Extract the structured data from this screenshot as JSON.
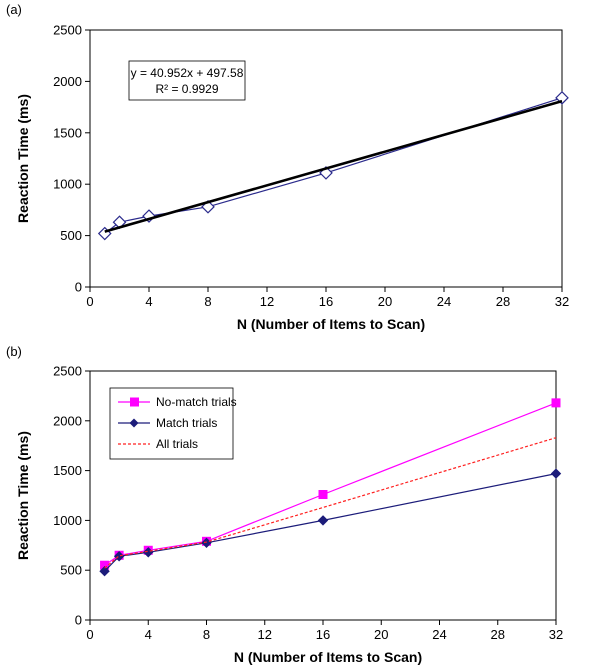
{
  "chart_data": [
    {
      "panel_label": "(a)",
      "type": "scatter",
      "xlabel": "N (Number of Items to Scan)",
      "ylabel": "Reaction Time (ms)",
      "xlim": [
        0,
        32
      ],
      "ylim": [
        0,
        2500
      ],
      "xticks": [
        0,
        4,
        8,
        12,
        16,
        20,
        24,
        28,
        32
      ],
      "yticks": [
        0,
        500,
        1000,
        1500,
        2000,
        2500
      ],
      "grid": false,
      "series": [
        {
          "marker": "diamond-open",
          "color": "#2b2b8c",
          "x": [
            1,
            2,
            4,
            8,
            16,
            32
          ],
          "y": [
            520,
            630,
            690,
            780,
            1110,
            1840
          ]
        }
      ],
      "trendline": {
        "slope": 40.952,
        "intercept": 497.58,
        "x_range": [
          1,
          32
        ],
        "color": "#000000"
      },
      "annotation": {
        "equation": "y = 40.952x + 497.58",
        "r_squared": "R² = 0.9929"
      }
    },
    {
      "panel_label": "(b)",
      "type": "line",
      "xlabel": "N (Number of Items to Scan)",
      "ylabel": "Reaction Time (ms)",
      "xlim": [
        0,
        32
      ],
      "ylim": [
        0,
        2500
      ],
      "xticks": [
        0,
        4,
        8,
        12,
        16,
        20,
        24,
        28,
        32
      ],
      "yticks": [
        0,
        500,
        1000,
        1500,
        2000,
        2500
      ],
      "grid": false,
      "legend_position": "top-left",
      "series": [
        {
          "name": "No-match trials",
          "color": "#ff00ff",
          "marker": "square",
          "dash": false,
          "x": [
            1,
            2,
            4,
            8,
            16,
            32
          ],
          "y": [
            550,
            650,
            700,
            790,
            1260,
            2180
          ]
        },
        {
          "name": "Match trials",
          "color": "#1c1c7a",
          "marker": "diamond",
          "dash": false,
          "x": [
            1,
            2,
            4,
            8,
            16,
            32
          ],
          "y": [
            490,
            640,
            680,
            775,
            1000,
            1470
          ]
        },
        {
          "name": "All trials",
          "color": "#ff2020",
          "marker": "none",
          "dash": true,
          "x": [
            1,
            2,
            4,
            8,
            16,
            32
          ],
          "y": [
            520,
            645,
            690,
            782,
            1130,
            1830
          ]
        }
      ]
    }
  ]
}
